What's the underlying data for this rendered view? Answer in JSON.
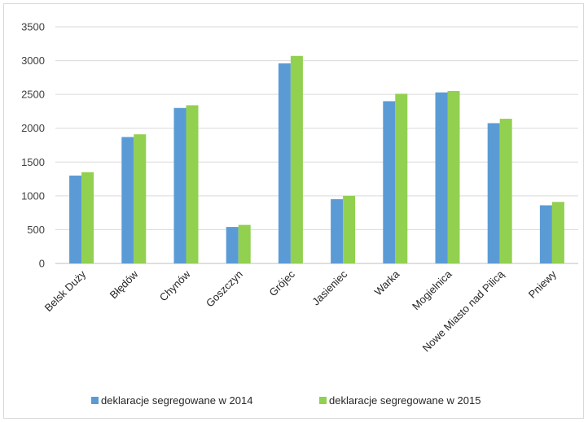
{
  "chart_data": {
    "type": "bar",
    "title": "",
    "xlabel": "",
    "ylabel": "",
    "ylim": [
      0,
      3500
    ],
    "yticks": [
      0,
      500,
      1000,
      1500,
      2000,
      2500,
      3000,
      3500
    ],
    "grid": true,
    "legend_position": "bottom",
    "categories": [
      "Belsk Duży",
      "Błędów",
      "Chynów",
      "Goszczyn",
      "Grójec",
      "Jasieniec",
      "Warka",
      "Mogielnica",
      "Nowe Miasto nad Pilicą",
      "Pniewy"
    ],
    "series": [
      {
        "name": "deklaracje segregowane w 2014",
        "color": "#5b9bd5",
        "values": [
          1300,
          1870,
          2300,
          540,
          2960,
          950,
          2400,
          2530,
          2075,
          860
        ]
      },
      {
        "name": "deklaracje segregowane w 2015",
        "color": "#92d050",
        "values": [
          1350,
          1910,
          2340,
          570,
          3070,
          1000,
          2510,
          2550,
          2140,
          910
        ]
      }
    ]
  }
}
